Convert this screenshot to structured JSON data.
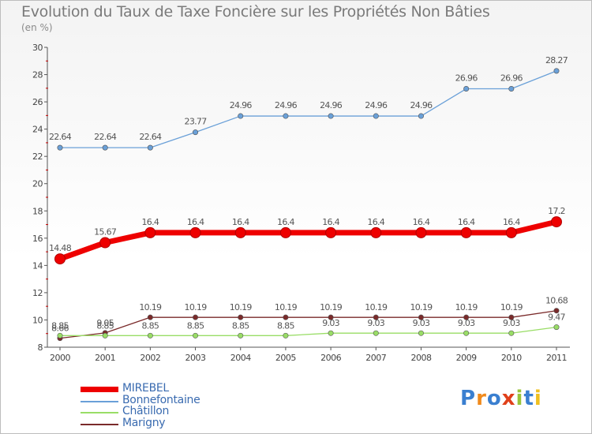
{
  "header": {
    "title": "Evolution du Taux de Taxe Foncière sur les Propriétés Non Bâties",
    "unit": "(en %)"
  },
  "logo": {
    "text": "Proxiti",
    "colors": [
      "#3a7fd0",
      "#f08a1c",
      "#3a7fd0",
      "#e0401a",
      "#9ac43a",
      "#3a7fd0",
      "#f0c020"
    ]
  },
  "chart_data": {
    "type": "line",
    "title": "Evolution du Taux de Taxe Foncière sur les Propriétés Non Bâties",
    "ylabel": "(en %)",
    "xlabel": "",
    "x": [
      "2000",
      "2001",
      "2002",
      "2003",
      "2004",
      "2005",
      "2006",
      "2007",
      "2008",
      "2009",
      "2010",
      "2011"
    ],
    "ylim": [
      8,
      30
    ],
    "yticks": [
      "8",
      "10",
      "12",
      "14",
      "16",
      "18",
      "20",
      "22",
      "24",
      "26",
      "28",
      "30"
    ],
    "grid": false,
    "legend": "bottom-left",
    "series": [
      {
        "name": "MIREBEL",
        "color": "#ee0000",
        "style": "thick",
        "values": [
          14.48,
          15.67,
          16.4,
          16.4,
          16.4,
          16.4,
          16.4,
          16.4,
          16.4,
          16.4,
          16.4,
          17.2
        ],
        "labels": [
          "14.48",
          "15.67",
          "16.4",
          "16.4",
          "16.4",
          "16.4",
          "16.4",
          "16.4",
          "16.4",
          "16.4",
          "16.4",
          "17.2"
        ]
      },
      {
        "name": "Bonnefontaine",
        "color": "#6aa0d8",
        "style": "thin",
        "values": [
          22.64,
          22.64,
          22.64,
          23.77,
          24.96,
          24.96,
          24.96,
          24.96,
          24.96,
          26.96,
          26.96,
          28.27
        ],
        "labels": [
          "22.64",
          "22.64",
          "22.64",
          "23.77",
          "24.96",
          "24.96",
          "24.96",
          "24.96",
          "24.96",
          "26.96",
          "26.96",
          "28.27"
        ]
      },
      {
        "name": "Châtillon",
        "color": "#99dd66",
        "style": "thin",
        "values": [
          8.85,
          8.85,
          8.85,
          8.85,
          8.85,
          8.85,
          9.03,
          9.03,
          9.03,
          9.03,
          9.03,
          9.47
        ],
        "labels": [
          "8.85",
          "8.85",
          "8.85",
          "8.85",
          "8.85",
          "8.85",
          "9.03",
          "9.03",
          "9.03",
          "9.03",
          "9.03",
          "9.47"
        ]
      },
      {
        "name": "Marigny",
        "color": "#7a2a2a",
        "style": "thin",
        "values": [
          8.66,
          9.05,
          10.19,
          10.19,
          10.19,
          10.19,
          10.19,
          10.19,
          10.19,
          10.19,
          10.19,
          10.68
        ],
        "labels": [
          "8.66",
          "9.05",
          "10.19",
          "10.19",
          "10.19",
          "10.19",
          "10.19",
          "10.19",
          "10.19",
          "10.19",
          "10.19",
          "10.68"
        ]
      }
    ]
  }
}
